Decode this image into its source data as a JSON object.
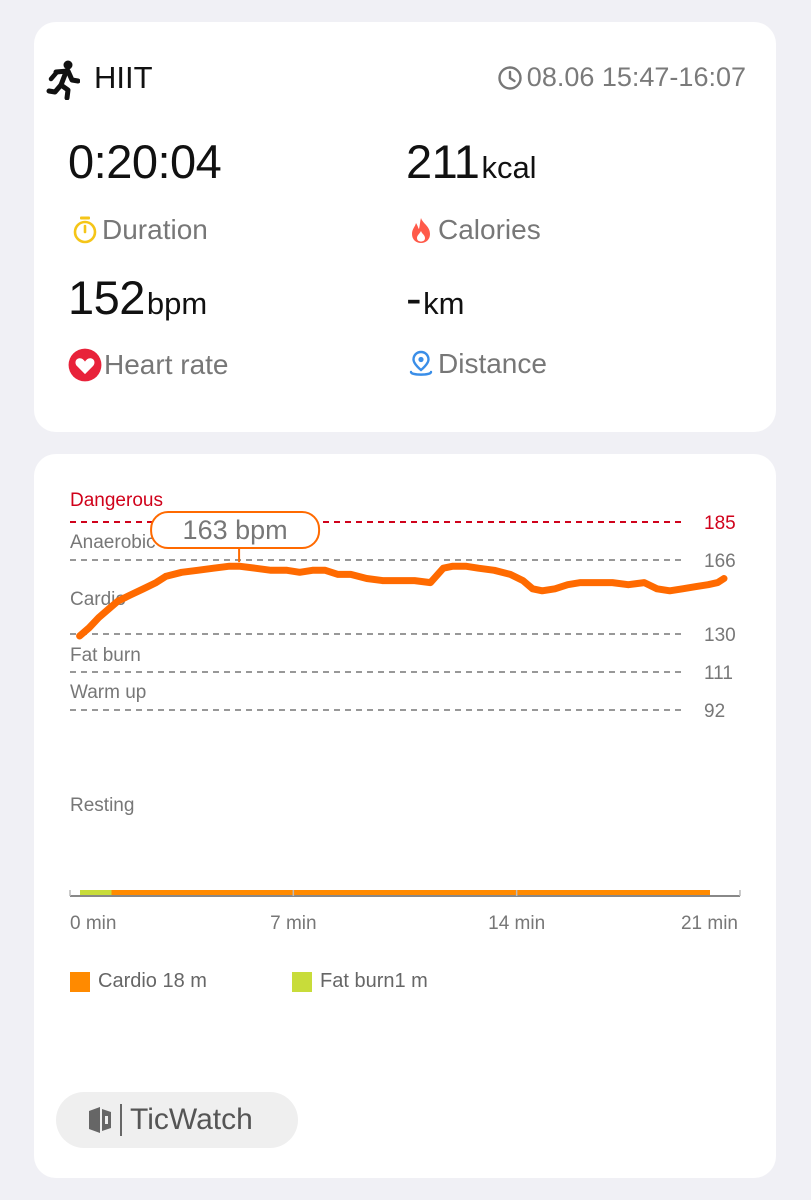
{
  "summary": {
    "workout_type": "HIIT",
    "workout_icon": "running-person-icon",
    "time_range": "08.06 15:47-16:07",
    "metrics": [
      {
        "value": "0:20:04",
        "unit": "",
        "label": "Duration",
        "icon": "stopwatch-icon",
        "icon_color": "#f5c518"
      },
      {
        "value": "211",
        "unit": "kcal",
        "label": "Calories",
        "icon": "flame-icon",
        "icon_color": "#ff5a4a"
      },
      {
        "value": "152",
        "unit": "bpm",
        "label": "Heart rate",
        "icon": "heart-icon",
        "icon_color": "#e8223a"
      },
      {
        "value": "-",
        "unit": "km",
        "label": "Distance",
        "icon": "location-pin-icon",
        "icon_color": "#3a8ee8"
      }
    ]
  },
  "chart_data": {
    "type": "line",
    "zones": [
      {
        "name": "Dangerous",
        "threshold": 185
      },
      {
        "name": "Anaerobic",
        "threshold": 166
      },
      {
        "name": "Cardio",
        "threshold": 130
      },
      {
        "name": "Fat burn",
        "threshold": 111
      },
      {
        "name": "Warm up",
        "threshold": 92
      },
      {
        "name": "Resting",
        "threshold": null
      }
    ],
    "threshold_ticks": [
      "185",
      "166",
      "130",
      "111",
      "92"
    ],
    "x_ticks": [
      "0 min",
      "7 min",
      "14 min",
      "21 min"
    ],
    "x_range": [
      0,
      21
    ],
    "peak": {
      "label": "163 bpm",
      "x": 5.3,
      "y": 163
    },
    "line_color": "#ff6a00",
    "x": [
      0.3,
      0.6,
      0.9,
      1.2,
      1.5,
      1.9,
      2.3,
      2.7,
      3.0,
      3.5,
      4.0,
      4.5,
      5.0,
      5.3,
      5.8,
      6.3,
      6.8,
      7.2,
      7.6,
      8.0,
      8.4,
      8.8,
      9.3,
      9.8,
      10.3,
      10.8,
      11.3,
      11.7,
      12.0,
      12.4,
      12.8,
      13.3,
      13.8,
      14.2,
      14.5,
      14.8,
      15.2,
      15.6,
      16.0,
      16.5,
      17.0,
      17.5,
      18.0,
      18.4,
      18.8,
      19.2,
      19.6,
      20.0,
      20.3,
      20.5
    ],
    "y": [
      129,
      133,
      138,
      142,
      146,
      149,
      152,
      155,
      158,
      160,
      161,
      162,
      163,
      163,
      162,
      161,
      161,
      160,
      161,
      161,
      159,
      159,
      157,
      156,
      156,
      156,
      155,
      162,
      163,
      163,
      162,
      161,
      159,
      156,
      152,
      151,
      152,
      154,
      155,
      155,
      155,
      154,
      155,
      152,
      151,
      152,
      153,
      154,
      155,
      157
    ],
    "legend": [
      {
        "label": "Cardio 18 m",
        "color": "#ff8a00"
      },
      {
        "label": "Fat burn1 m",
        "color": "#c8dc3a"
      }
    ],
    "zone_bar": {
      "fat_burn_fraction": 0.05,
      "cardio_fraction": 0.95
    }
  },
  "brand": {
    "name": "TicWatch",
    "icon": "ticwatch-logo-icon"
  }
}
